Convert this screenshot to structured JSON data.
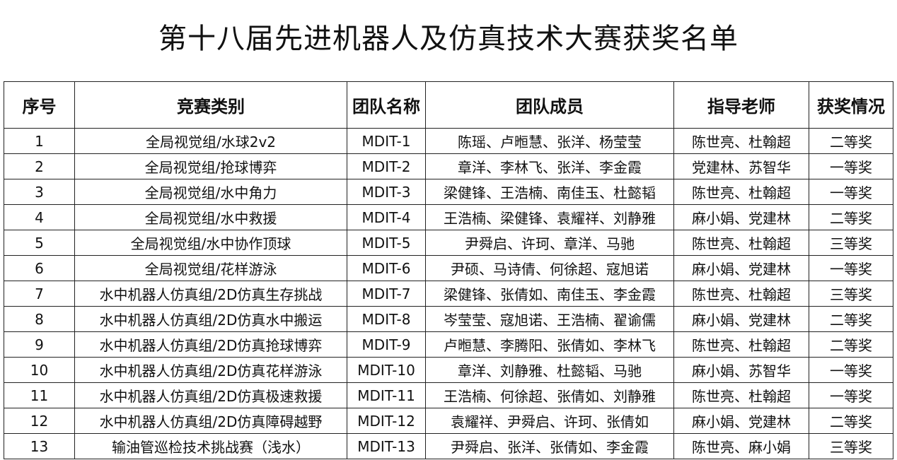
{
  "title": "第十八届先进机器人及仿真技术大赛获奖名单",
  "columns": [
    "序号",
    "竞赛类别",
    "团队名称",
    "团队成员",
    "指导老师",
    "获奖情况"
  ],
  "rows": [
    [
      "1",
      "全局视觉组/水球2v2",
      "MDIT-1",
      "陈瑶、卢暅慧、张洋、杨莹莹",
      "陈世亮、杜翰超",
      "二等奖"
    ],
    [
      "2",
      "全局视觉组/抢球博弈",
      "MDIT-2",
      "章洋、李林飞、张洋、李金霞",
      "党建林、苏智华",
      "一等奖"
    ],
    [
      "3",
      "全局视觉组/水中角力",
      "MDIT-3",
      "梁健锋、王浩楠、南佳玉、杜懿韬",
      "陈世亮、杜翰超",
      "一等奖"
    ],
    [
      "4",
      "全局视觉组/水中救援",
      "MDIT-4",
      "王浩楠、梁健锋、袁耀祥、刘静雅",
      "麻小娟、党建林",
      "二等奖"
    ],
    [
      "5",
      "全局视觉组/水中协作顶球",
      "MDIT-5",
      "尹舜启、许珂、章洋、马驰",
      "陈世亮、杜翰超",
      "三等奖"
    ],
    [
      "6",
      "全局视觉组/花样游泳",
      "MDIT-6",
      "尹硕、马诗倩、何徐超、寇旭诺",
      "麻小娟、党建林",
      "一等奖"
    ],
    [
      "7",
      "水中机器人仿真组/2D仿真生存挑战",
      "MDIT-7",
      "梁健锋、张倩如、南佳玉、李金霞",
      "陈世亮、杜翰超",
      "三等奖"
    ],
    [
      "8",
      "水中机器人仿真组/2D仿真水中搬运",
      "MDIT-8",
      "岑莹莹、寇旭诺、王浩楠、翟谕儒",
      "麻小娟、党建林",
      "二等奖"
    ],
    [
      "9",
      "水中机器人仿真组/2D仿真抢球博弈",
      "MDIT-9",
      "卢暅慧、李腾阳、张倩如、李林飞",
      "陈世亮、杜翰超",
      "二等奖"
    ],
    [
      "10",
      "水中机器人仿真组/2D仿真花样游泳",
      "MDIT-10",
      "章洋、刘静雅、杜懿韬、马驰",
      "麻小娟、苏智华",
      "一等奖"
    ],
    [
      "11",
      "水中机器人仿真组/2D仿真极速救援",
      "MDIT-11",
      "王浩楠、何徐超、张倩如、刘静雅",
      "陈世亮、杜翰超",
      "一等奖"
    ],
    [
      "12",
      "水中机器人仿真组/2D仿真障碍越野",
      "MDIT-12",
      "袁耀祥、尹舜启、许珂、张倩如",
      "麻小娟、党建林",
      "二等奖"
    ],
    [
      "13",
      "输油管巡检技术挑战赛（浅水）",
      "MDIT-13",
      "尹舜启、张洋、张倩如、李金霞",
      "陈世亮、麻小娟",
      "三等奖"
    ]
  ]
}
